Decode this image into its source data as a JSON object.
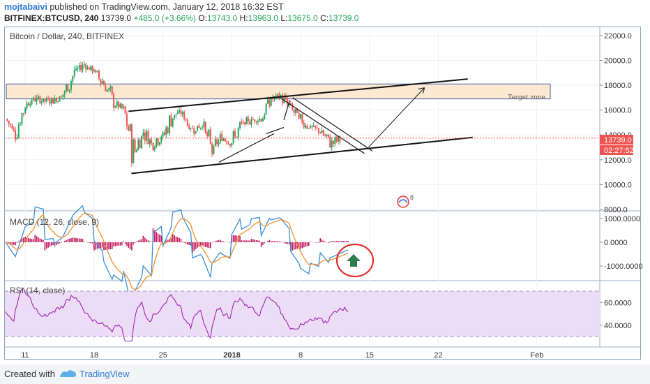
{
  "header": {
    "author": "mojtabaivi",
    "published_text": "published on TradingView.com, January 12, 2018 16:32 EST",
    "symbol": "BITFINEX:BTCUSD, 240",
    "last": "13739.0",
    "change": "+485.0 (+3.66%)",
    "o_label": "O:",
    "o_value": "13743.0",
    "h_label": "H:",
    "h_value": "13963.0",
    "l_label": "L:",
    "l_value": "13675.0",
    "c_label": "C:",
    "c_value": "13739.0"
  },
  "footer": {
    "created_with": "Created with",
    "brand": "TradingView"
  },
  "colors": {
    "bull": "#26a65b",
    "bear": "#ef5350",
    "macd_line": "#3a8fd8",
    "signal_line": "#f0902c",
    "histogram": "#c2185b",
    "rsi_line": "#9c27b0",
    "rsi_band": "#ecdcf5",
    "target_zone": "#fde9d2",
    "price_tag": "#ef5350",
    "circle": "#e0302b",
    "up_arrow": "#2e7d4f"
  },
  "chart_data": [
    {
      "type": "candlestick",
      "title": "Bitcoin / Dollar, 240, BITFINEX",
      "x_ticks": [
        "11",
        "18",
        "25",
        "2018",
        "8",
        "15",
        "22",
        "Feb"
      ],
      "y_ticks": [
        "22000.0",
        "20000.0",
        "18000.0",
        "16000.0",
        "14000.0",
        "12000.0",
        "10000.0",
        "8000.0"
      ],
      "ylim": [
        8000,
        22500
      ],
      "price_label": "13739.0",
      "countdown_label": "02:27:52",
      "annotation_target_zone": "Target zone",
      "target_zone_range": [
        16900,
        18100
      ],
      "close_path": [
        [
          "Dec 09",
          15300
        ],
        [
          "Dec 10",
          14200
        ],
        [
          "Dec 11",
          16500
        ],
        [
          "Dec 12",
          16900
        ],
        [
          "Dec 13",
          16700
        ],
        [
          "Dec 14",
          16800
        ],
        [
          "Dec 15",
          17400
        ],
        [
          "Dec 16",
          19000
        ],
        [
          "Dec 17",
          19700
        ],
        [
          "Dec 18",
          19100
        ],
        [
          "Dec 19",
          18200
        ],
        [
          "Dec 20",
          16600
        ],
        [
          "Dec 21",
          16000
        ],
        [
          "Dec 22",
          12600
        ],
        [
          "Dec 23",
          14200
        ],
        [
          "Dec 24",
          13300
        ],
        [
          "Dec 25",
          13900
        ],
        [
          "Dec 26",
          15600
        ],
        [
          "Dec 27",
          15800
        ],
        [
          "Dec 28",
          14400
        ],
        [
          "Dec 29",
          14700
        ],
        [
          "Dec 30",
          12800
        ],
        [
          "Dec 31",
          13800
        ],
        [
          "Jan 01",
          13400
        ],
        [
          "Jan 02",
          14800
        ],
        [
          "Jan 03",
          15200
        ],
        [
          "Jan 04",
          15300
        ],
        [
          "Jan 05",
          16900
        ],
        [
          "Jan 06",
          17100
        ],
        [
          "Jan 07",
          16200
        ],
        [
          "Jan 08",
          15100
        ],
        [
          "Jan 09",
          14600
        ],
        [
          "Jan 10",
          14300
        ],
        [
          "Jan 11",
          13400
        ],
        [
          "Jan 12",
          13739
        ]
      ]
    },
    {
      "type": "line",
      "title": "MACD (12, 26, close, 9)",
      "y_ticks": [
        "1000.0000",
        "0.0000",
        "-1000.0000"
      ],
      "ylim": [
        -1500,
        1200
      ]
    },
    {
      "type": "line",
      "title": "RSI (14, close)",
      "y_ticks": [
        "60.0000",
        "40.0000"
      ],
      "ylim": [
        22,
        78
      ],
      "bands": [
        30,
        70
      ]
    }
  ]
}
